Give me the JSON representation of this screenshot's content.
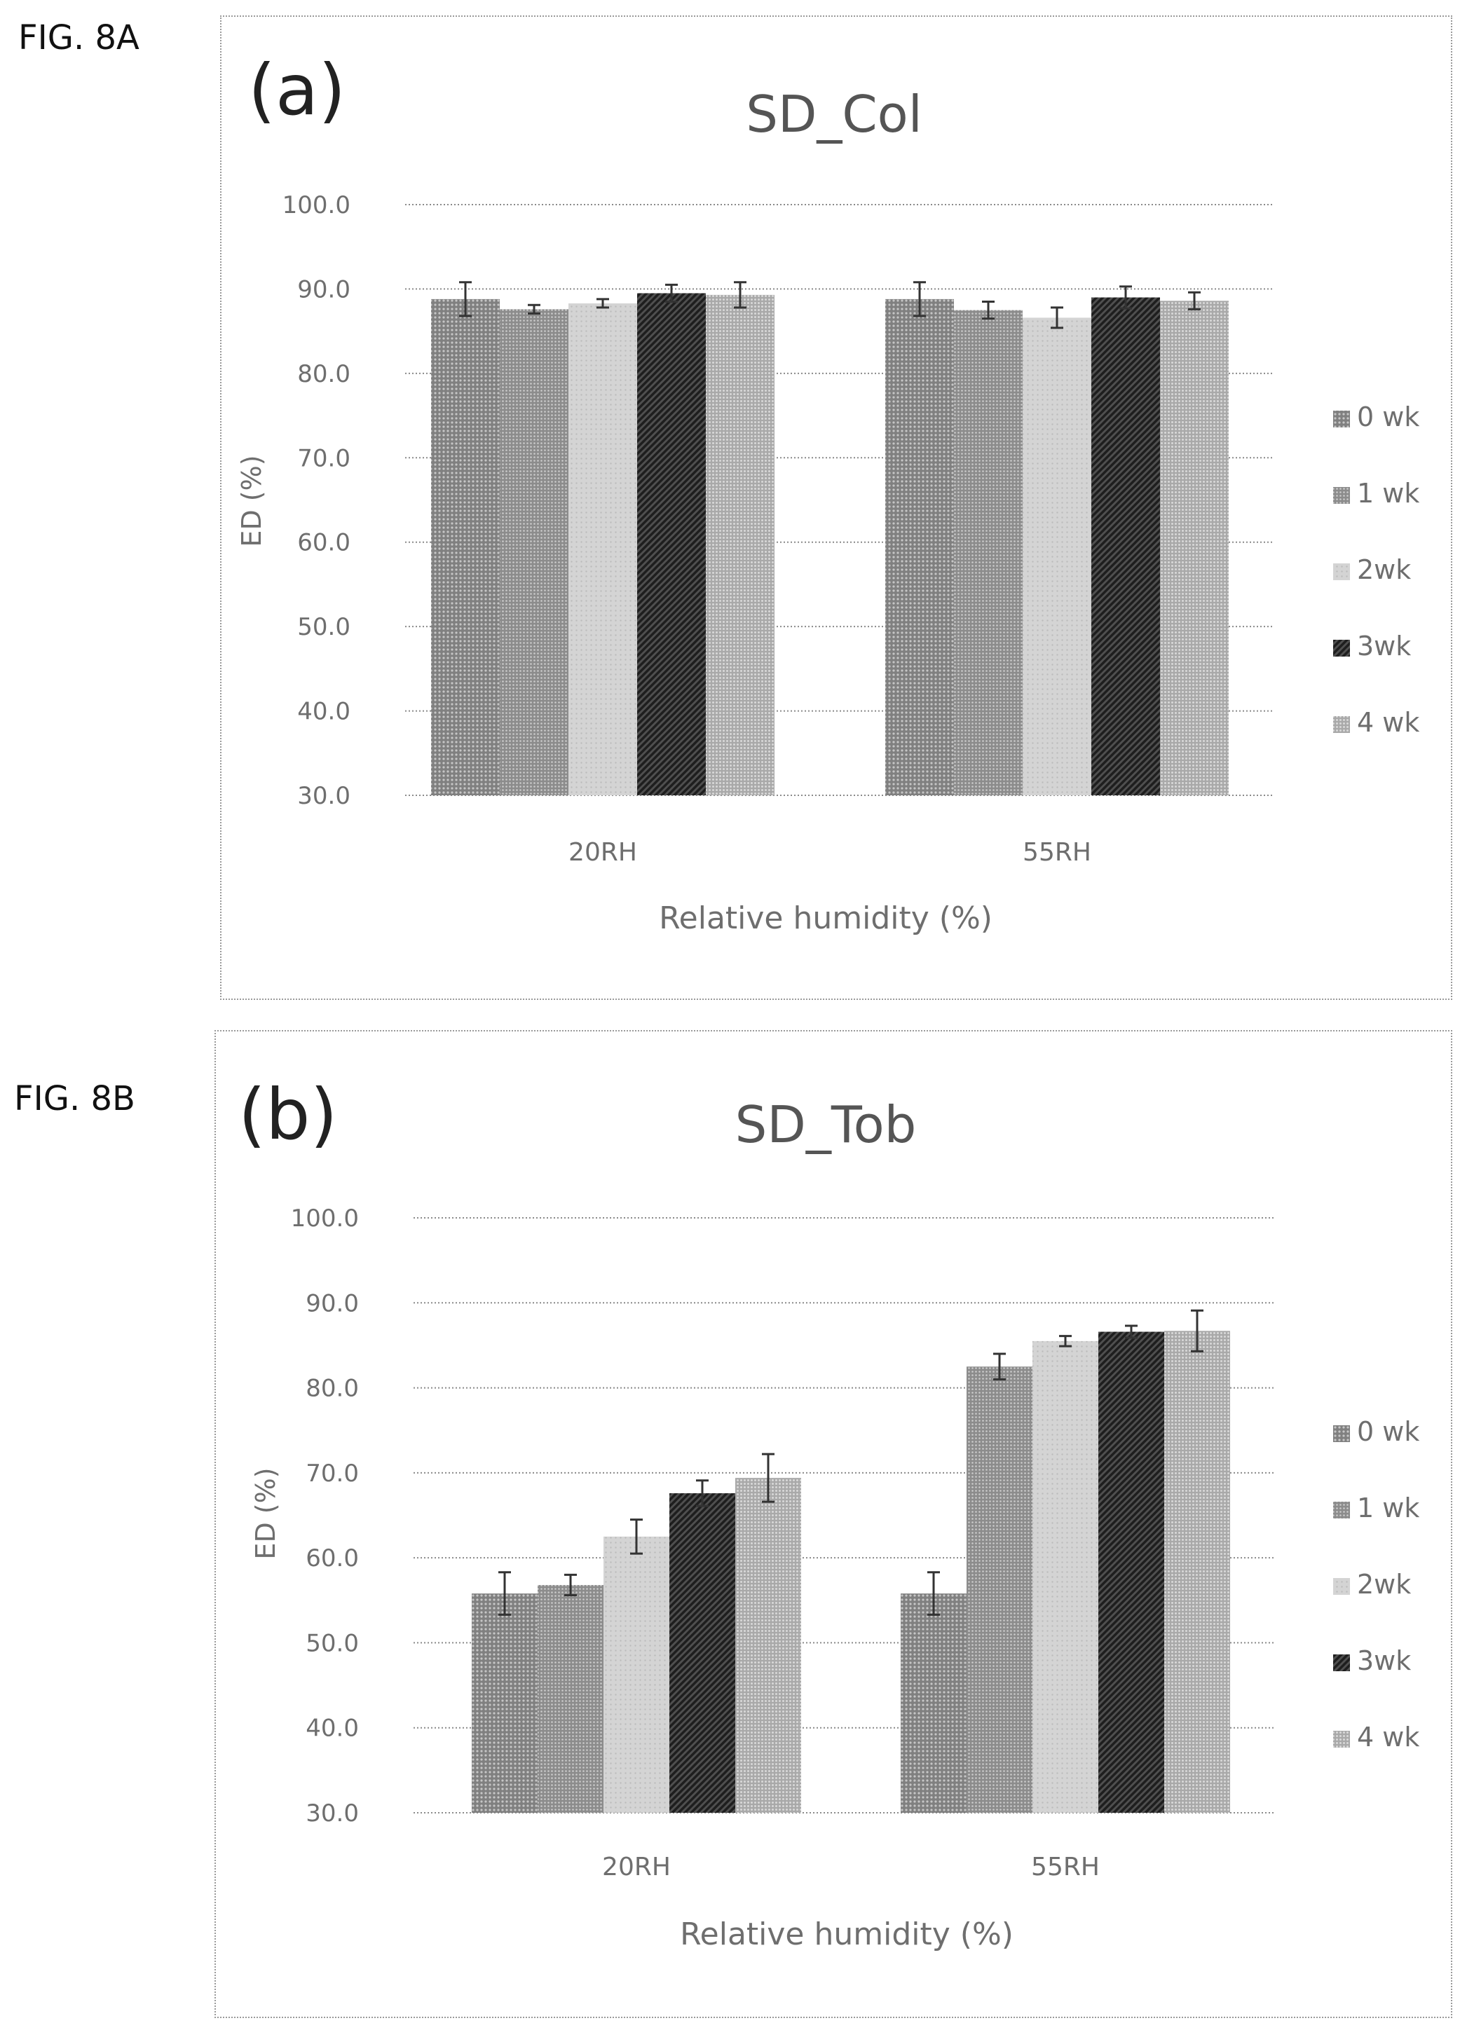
{
  "figure_labels": {
    "a": "FIG. 8A",
    "b": "FIG. 8B"
  },
  "panel_labels": {
    "a": "(a)",
    "b": "(b)"
  },
  "colors": {
    "series": [
      "#808080",
      "#8c8c8c",
      "#d4d4d4",
      "#4f4f4f",
      "#a9a9a9"
    ],
    "grid": "#8a8a8a",
    "text": "#6e6e6e",
    "title": "#555555"
  },
  "chart_data": [
    {
      "type": "bar",
      "title": "SD_Col",
      "xlabel": "Relative humidity (%)",
      "ylabel": "ED (%)",
      "ylim": [
        30,
        100
      ],
      "yticks": [
        "30.0",
        "40.0",
        "50.0",
        "60.0",
        "70.0",
        "80.0",
        "90.0",
        "100.0"
      ],
      "categories": [
        "20RH",
        "55RH"
      ],
      "legend_position": "right",
      "grid": true,
      "series": [
        {
          "name": "0 wk",
          "values": [
            88.8,
            88.8
          ],
          "errors": [
            2.0,
            2.0
          ]
        },
        {
          "name": "1 wk",
          "values": [
            87.6,
            87.5
          ],
          "errors": [
            0.5,
            1.0
          ]
        },
        {
          "name": "2wk",
          "values": [
            88.3,
            86.6
          ],
          "errors": [
            0.5,
            1.2
          ]
        },
        {
          "name": "3wk",
          "values": [
            89.5,
            89.0
          ],
          "errors": [
            1.0,
            1.3
          ]
        },
        {
          "name": "4 wk",
          "values": [
            89.3,
            88.6
          ],
          "errors": [
            1.5,
            1.0
          ]
        }
      ]
    },
    {
      "type": "bar",
      "title": "SD_Tob",
      "xlabel": "Relative humidity (%)",
      "ylabel": "ED (%)",
      "ylim": [
        30,
        100
      ],
      "yticks": [
        "30.0",
        "40.0",
        "50.0",
        "60.0",
        "70.0",
        "80.0",
        "90.0",
        "100.0"
      ],
      "categories": [
        "20RH",
        "55RH"
      ],
      "legend_position": "right",
      "grid": true,
      "series": [
        {
          "name": "0 wk",
          "values": [
            55.8,
            55.8
          ],
          "errors": [
            2.5,
            2.5
          ]
        },
        {
          "name": "1 wk",
          "values": [
            56.8,
            82.5
          ],
          "errors": [
            1.2,
            1.5
          ]
        },
        {
          "name": "2wk",
          "values": [
            62.5,
            85.5
          ],
          "errors": [
            2.0,
            0.6
          ]
        },
        {
          "name": "3wk",
          "values": [
            67.6,
            86.6
          ],
          "errors": [
            1.5,
            0.7
          ]
        },
        {
          "name": "4 wk",
          "values": [
            69.4,
            86.7
          ],
          "errors": [
            2.8,
            2.4
          ]
        }
      ]
    }
  ]
}
